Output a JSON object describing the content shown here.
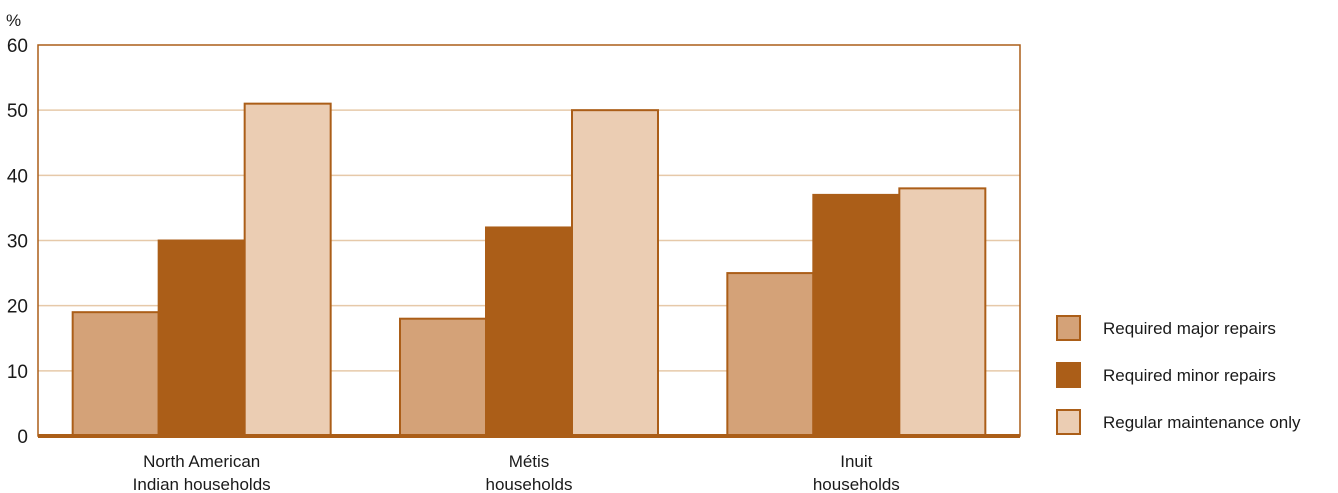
{
  "chart_data": {
    "type": "bar",
    "unit_label": "%",
    "categories": [
      [
        "North American",
        "Indian households"
      ],
      [
        "Métis",
        "households"
      ],
      [
        "Inuit",
        "households"
      ]
    ],
    "series": [
      {
        "name": "Required major repairs",
        "values": [
          19,
          18,
          25
        ]
      },
      {
        "name": "Required minor repairs",
        "values": [
          30,
          32,
          37
        ]
      },
      {
        "name": "Regular maintenance only",
        "values": [
          51,
          50,
          38
        ]
      }
    ],
    "ylim": [
      0,
      60
    ],
    "yticks": [
      0,
      10,
      20,
      30,
      40,
      50,
      60
    ],
    "grid": true,
    "legend_position": "right"
  },
  "colors": {
    "series": [
      "#d4a278",
      "#ab5e18",
      "#ebcdb3"
    ],
    "edge": "#ab5e18",
    "grid": "#e6c9a9",
    "axis": "#ab5e18"
  }
}
